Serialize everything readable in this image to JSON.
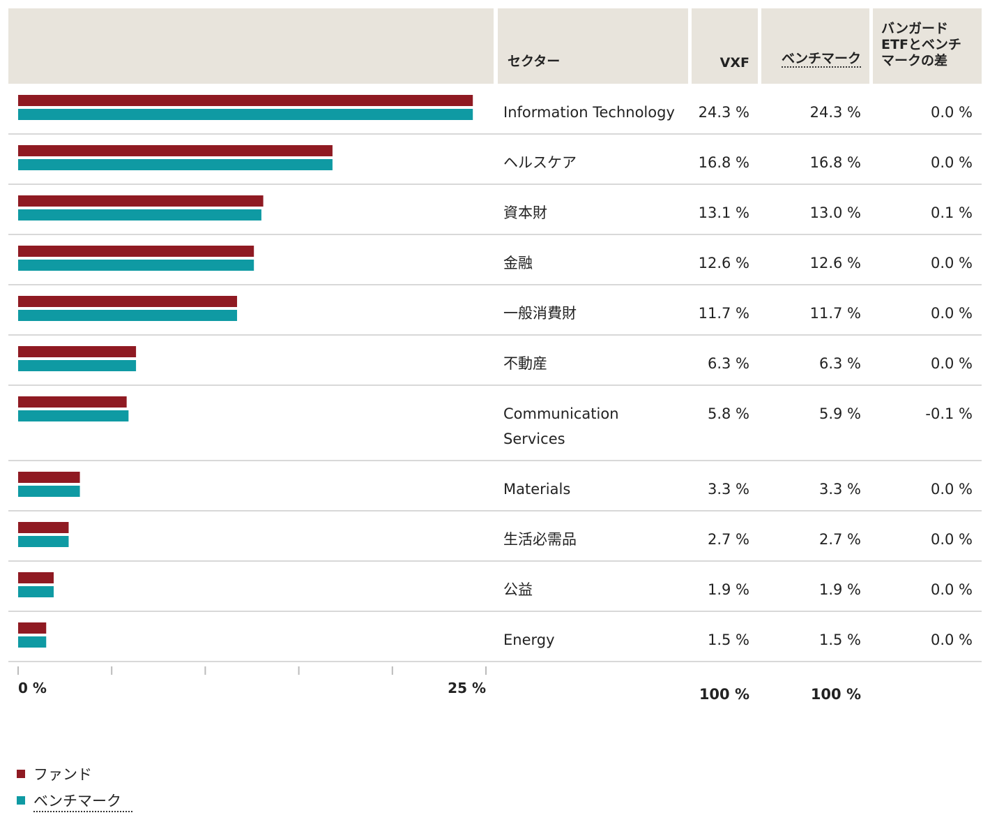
{
  "chart_data": {
    "type": "bar",
    "columns": [
      "セクター",
      "VXF",
      "ベンチマーク",
      "バンガード ETFとベンチ マークの差"
    ],
    "categories": [
      "Information Technology",
      "ヘルスケア",
      "資本財",
      "金融",
      "一般消費財",
      "不動産",
      "Communication Services",
      "Materials",
      "生活必需品",
      "公益",
      "Energy"
    ],
    "series": [
      {
        "name": "ファンド",
        "color": "#8f1a22",
        "values": [
          24.3,
          16.8,
          13.1,
          12.6,
          11.7,
          6.3,
          5.8,
          3.3,
          2.7,
          1.9,
          1.5
        ],
        "value_labels": [
          "24.3 %",
          "16.8 %",
          "13.1 %",
          "12.6 %",
          "11.7 %",
          "6.3 %",
          "5.8 %",
          "3.3 %",
          "2.7 %",
          "1.9 %",
          "1.5 %"
        ],
        "total_label": "100 %"
      },
      {
        "name": "ベンチマーク",
        "color": "#0f9aa3",
        "values": [
          24.3,
          16.8,
          13.0,
          12.6,
          11.7,
          6.3,
          5.9,
          3.3,
          2.7,
          1.9,
          1.5
        ],
        "value_labels": [
          "24.3 %",
          "16.8 %",
          "13.0 %",
          "12.6 %",
          "11.7 %",
          "6.3 %",
          "5.9 %",
          "3.3 %",
          "2.7 %",
          "1.9 %",
          "1.5 %"
        ],
        "total_label": "100 %"
      }
    ],
    "differences": {
      "values": [
        0.0,
        0.0,
        0.1,
        0.0,
        0.0,
        0.0,
        -0.1,
        0.0,
        0.0,
        0.0,
        0.0
      ],
      "value_labels": [
        "0.0 %",
        "0.0 %",
        "0.1 %",
        "0.0 %",
        "0.0 %",
        "0.0 %",
        "-0.1 %",
        "0.0 %",
        "0.0 %",
        "0.0 %",
        "0.0 %"
      ]
    },
    "xlim": [
      0,
      25
    ],
    "xticks": [
      {
        "value": 0,
        "label": "0 %"
      },
      {
        "value": 25,
        "label": "25 %"
      }
    ],
    "xminor_ticks": [
      5,
      10,
      15,
      20
    ]
  }
}
